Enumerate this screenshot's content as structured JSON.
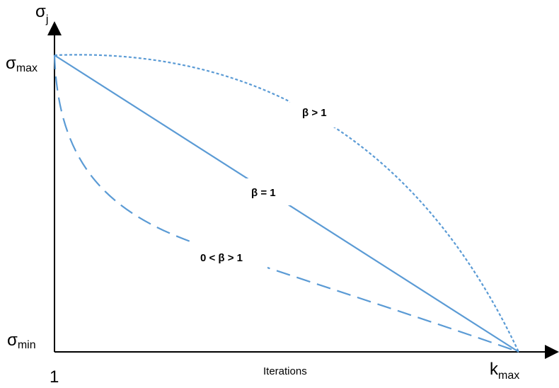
{
  "axes": {
    "y_label": {
      "main": "σ",
      "sub": "j"
    },
    "y_top": {
      "main": "σ",
      "sub": "max"
    },
    "y_bottom": {
      "main": "σ",
      "sub": "min"
    },
    "x_start": "1",
    "x_end": {
      "main": "k",
      "sub": "max"
    },
    "x_title": "Iterations"
  },
  "curves": [
    {
      "id": "beta-gt-1",
      "label": "β > 1",
      "style": "dotted"
    },
    {
      "id": "beta-eq-1",
      "label": "β = 1",
      "style": "solid"
    },
    {
      "id": "beta-between",
      "label": "0 < β > 1",
      "style": "dashed"
    }
  ],
  "colors": {
    "curve": "#5b9bd5",
    "axis": "#000000"
  }
}
